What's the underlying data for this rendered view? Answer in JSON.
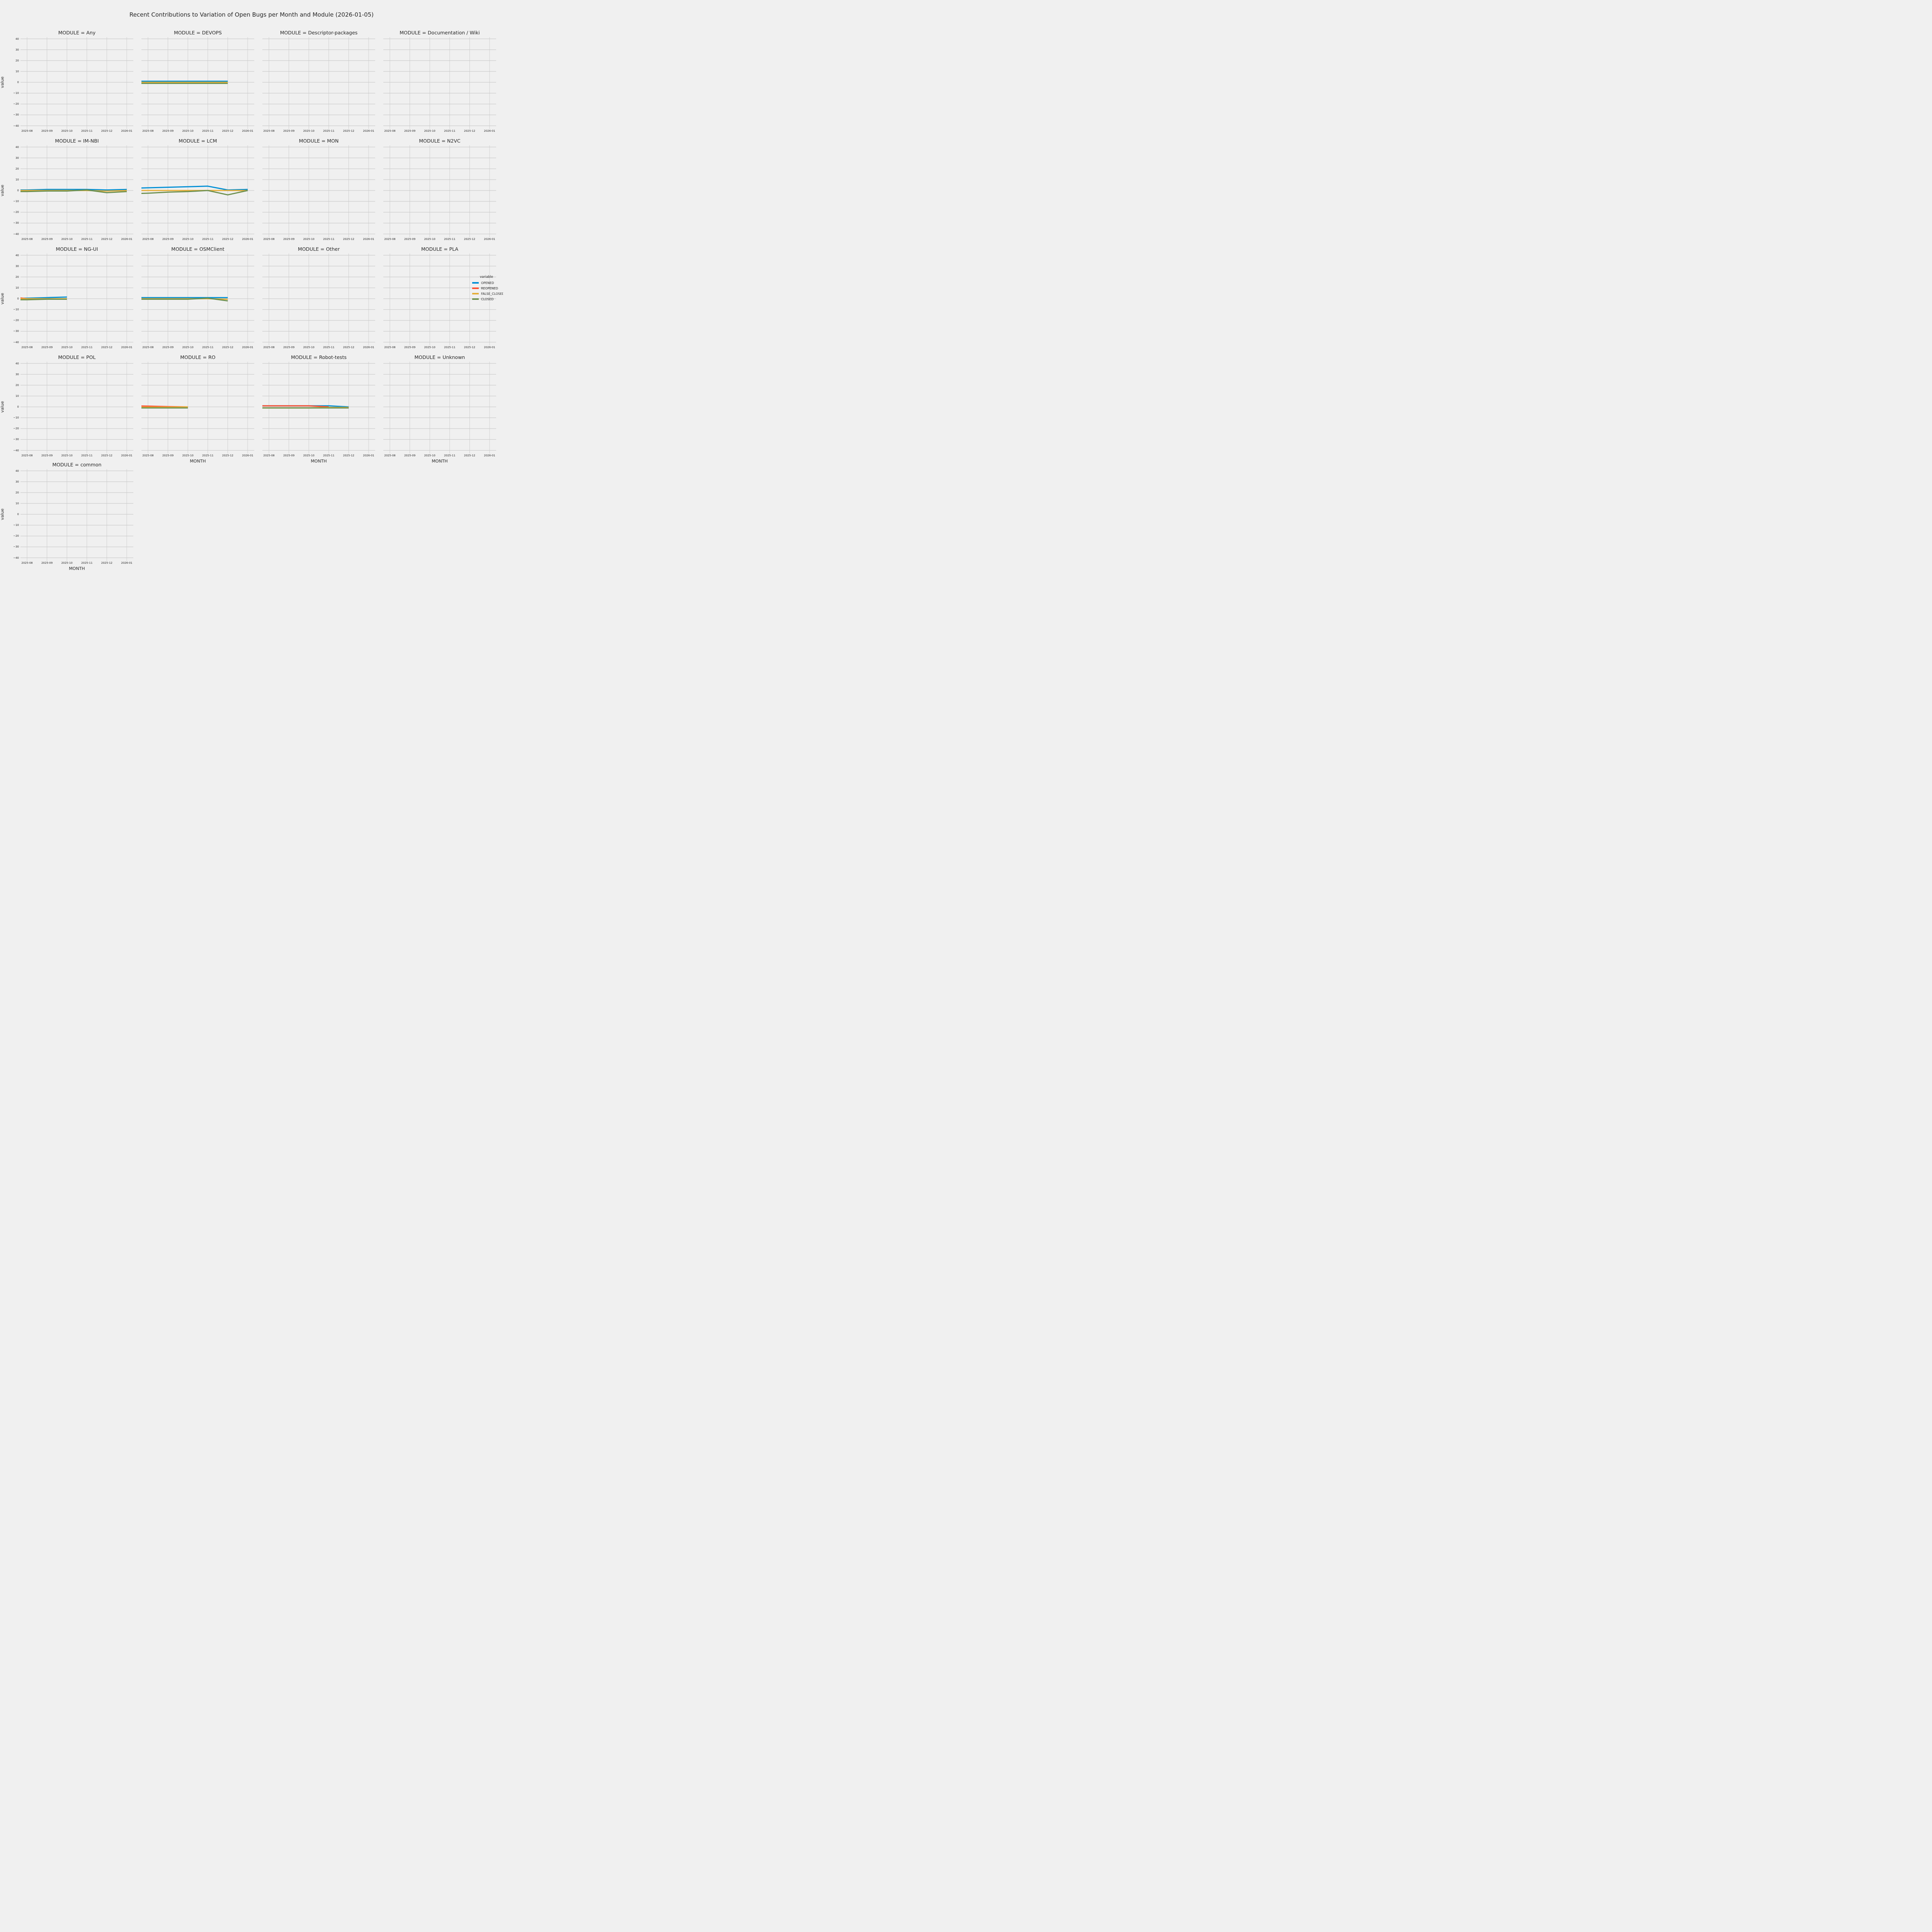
{
  "title": "Recent Contributions to Variation of Open Bugs per Month and Module (2026-01-05)",
  "colors": {
    "OPENED": "#008fd5",
    "REOPENED": "#fc4f30",
    "FALSE_CLOSED": "#e5ae38",
    "CLOSED": "#6d904f",
    "background": "#f0f0f0",
    "grid": "#cbcbcb",
    "text": "#262626"
  },
  "legend": {
    "title": "variable",
    "entries": [
      "OPENED",
      "REOPENED",
      "FALSE_CLOSED",
      "CLOSED"
    ]
  },
  "axes": {
    "xlabel": "MONTH",
    "ylabel": "value",
    "x_ticks": [
      "2025-08",
      "2025-09",
      "2025-10",
      "2025-11",
      "2025-12",
      "2026-01"
    ],
    "y_ticks": [
      40,
      30,
      20,
      10,
      0,
      -10,
      -20,
      -30,
      -40
    ]
  },
  "chart_data": {
    "type": "line",
    "facet_title_prefix": "MODULE = ",
    "note": "FacetGrid of line charts; series values estimated from gridlines (1 unit = 1 bug). Points at 2025-07 lie left of the visible x-range: those lines are clipped at the plot's left edge.",
    "ylim": [
      -41.6,
      41.6
    ],
    "facets": [
      {
        "module": "Any",
        "series": []
      },
      {
        "module": "DEVOPS",
        "series": [
          {
            "name": "OPENED",
            "x": [
              "2025-07",
              "2025-08",
              "2025-09",
              "2025-10",
              "2025-11",
              "2025-12"
            ],
            "y": [
              1,
              1,
              1,
              1,
              1,
              1
            ]
          },
          {
            "name": "FALSE_CLOSED",
            "x": [
              "2025-07",
              "2025-08",
              "2025-09",
              "2025-10",
              "2025-11",
              "2025-12"
            ],
            "y": [
              0,
              0,
              0,
              0,
              0,
              0
            ]
          },
          {
            "name": "CLOSED",
            "x": [
              "2025-07",
              "2025-08",
              "2025-09",
              "2025-10",
              "2025-11",
              "2025-12"
            ],
            "y": [
              -1,
              -1,
              -1,
              -1,
              -1,
              -1
            ]
          }
        ]
      },
      {
        "module": "Descriptor-packages",
        "series": []
      },
      {
        "module": "Documentation / Wiki",
        "series": []
      },
      {
        "module": "IM-NBI",
        "series": [
          {
            "name": "OPENED",
            "x": [
              "2025-07",
              "2025-08",
              "2025-09",
              "2025-10",
              "2025-11",
              "2025-12",
              "2026-01"
            ],
            "y": [
              0.5,
              0.5,
              1,
              1,
              1,
              0.5,
              1
            ]
          },
          {
            "name": "FALSE_CLOSED",
            "x": [
              "2025-07",
              "2025-08",
              "2025-09",
              "2025-10",
              "2025-11",
              "2025-12",
              "2026-01"
            ],
            "y": [
              0,
              0,
              0,
              0,
              0,
              -0.5,
              0
            ]
          },
          {
            "name": "CLOSED",
            "x": [
              "2025-07",
              "2025-08",
              "2025-09",
              "2025-10",
              "2025-11",
              "2025-12",
              "2026-01"
            ],
            "y": [
              -1,
              -1,
              -0.5,
              -0.5,
              0.5,
              -2,
              -1
            ]
          }
        ]
      },
      {
        "module": "LCM",
        "series": [
          {
            "name": "OPENED",
            "x": [
              "2025-07",
              "2025-08",
              "2025-09",
              "2025-10",
              "2025-11",
              "2025-12",
              "2026-01"
            ],
            "y": [
              2,
              2.5,
              3,
              3.5,
              4,
              0.5,
              1
            ]
          },
          {
            "name": "FALSE_CLOSED",
            "x": [
              "2025-07",
              "2025-08",
              "2025-09",
              "2025-10",
              "2025-11",
              "2025-12",
              "2026-01"
            ],
            "y": [
              0,
              0,
              0,
              0,
              0,
              0,
              0
            ]
          },
          {
            "name": "CLOSED",
            "x": [
              "2025-07",
              "2025-08",
              "2025-09",
              "2025-10",
              "2025-11",
              "2025-12",
              "2026-01"
            ],
            "y": [
              -3,
              -2.5,
              -1.5,
              -1,
              0,
              -4,
              0
            ]
          }
        ]
      },
      {
        "module": "MON",
        "series": []
      },
      {
        "module": "N2VC",
        "series": []
      },
      {
        "module": "NG-UI",
        "series": [
          {
            "name": "OPENED",
            "x": [
              "2025-07",
              "2025-08",
              "2025-09",
              "2025-10"
            ],
            "y": [
              0,
              0.5,
              1,
              1.5
            ]
          },
          {
            "name": "REOPENED",
            "x": [
              "2025-07",
              "2025-08"
            ],
            "y": [
              2,
              0
            ]
          },
          {
            "name": "FALSE_CLOSED",
            "x": [
              "2025-07",
              "2025-08",
              "2025-09",
              "2025-10"
            ],
            "y": [
              0,
              0,
              0,
              0
            ]
          },
          {
            "name": "CLOSED",
            "x": [
              "2025-07",
              "2025-08",
              "2025-09",
              "2025-10"
            ],
            "y": [
              -1,
              -1,
              -0.5,
              -0.5
            ]
          }
        ]
      },
      {
        "module": "OSMClient",
        "series": [
          {
            "name": "OPENED",
            "x": [
              "2025-07",
              "2025-08",
              "2025-09",
              "2025-10",
              "2025-11",
              "2025-12"
            ],
            "y": [
              1,
              1,
              1,
              1,
              1,
              1
            ]
          },
          {
            "name": "FALSE_CLOSED",
            "x": [
              "2025-07",
              "2025-08",
              "2025-09",
              "2025-10",
              "2025-11",
              "2025-12"
            ],
            "y": [
              0,
              0,
              0,
              0,
              0,
              -0.5
            ]
          },
          {
            "name": "CLOSED",
            "x": [
              "2025-07",
              "2025-08",
              "2025-09",
              "2025-10",
              "2025-11",
              "2025-12"
            ],
            "y": [
              -0.5,
              -0.5,
              -0.5,
              -0.5,
              0.5,
              -2
            ]
          }
        ]
      },
      {
        "module": "Other",
        "series": []
      },
      {
        "module": "PLA",
        "series": []
      },
      {
        "module": "POL",
        "series": []
      },
      {
        "module": "RO",
        "series": [
          {
            "name": "REOPENED",
            "x": [
              "2025-07",
              "2025-08",
              "2025-09",
              "2025-10"
            ],
            "y": [
              1,
              0.7,
              0.3,
              0
            ]
          },
          {
            "name": "FALSE_CLOSED",
            "x": [
              "2025-07",
              "2025-08",
              "2025-09",
              "2025-10"
            ],
            "y": [
              -0.5,
              -0.3,
              -0.2,
              0
            ]
          },
          {
            "name": "CLOSED",
            "x": [
              "2025-07",
              "2025-08",
              "2025-09",
              "2025-10"
            ],
            "y": [
              -1,
              -1,
              -1,
              -1
            ]
          }
        ]
      },
      {
        "module": "Robot-tests",
        "series": [
          {
            "name": "OPENED",
            "x": [
              "2025-07",
              "2025-08",
              "2025-09",
              "2025-10",
              "2025-11",
              "2025-12"
            ],
            "y": [
              1,
              1,
              1,
              1,
              1,
              0
            ]
          },
          {
            "name": "REOPENED",
            "x": [
              "2025-07",
              "2025-08",
              "2025-09",
              "2025-10",
              "2025-11"
            ],
            "y": [
              1,
              1,
              1,
              1,
              0
            ]
          },
          {
            "name": "FALSE_CLOSED",
            "x": [
              "2025-07",
              "2025-08",
              "2025-09",
              "2025-10",
              "2025-11",
              "2025-12"
            ],
            "y": [
              -1,
              -1,
              -1,
              -1,
              -0.5,
              -0.5
            ]
          },
          {
            "name": "CLOSED",
            "x": [
              "2025-07",
              "2025-08",
              "2025-09",
              "2025-10",
              "2025-11",
              "2025-12"
            ],
            "y": [
              -1,
              -1,
              -1,
              -1,
              -1,
              -1
            ]
          }
        ]
      },
      {
        "module": "Unknown",
        "series": []
      },
      {
        "module": "common",
        "series": []
      }
    ]
  }
}
